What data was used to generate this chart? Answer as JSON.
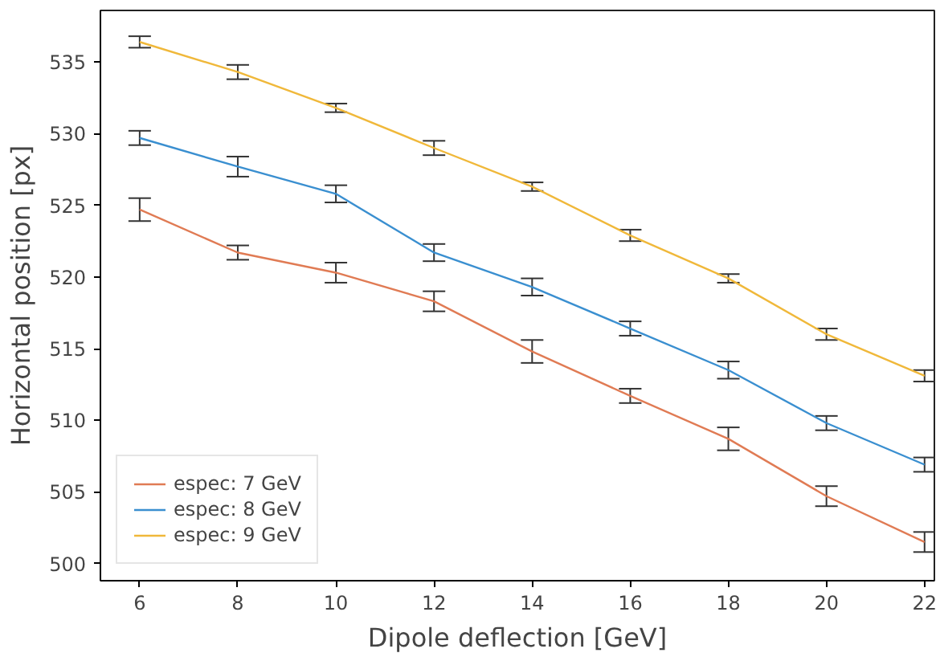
{
  "chart_data": {
    "type": "line",
    "xlabel": "Dipole deflection [GeV]",
    "ylabel": "Horizontal position [px]",
    "x": [
      6,
      8,
      10,
      12,
      14,
      16,
      18,
      20,
      22
    ],
    "series": [
      {
        "name": "espec: 7 GeV",
        "color": "#e07b54",
        "values": [
          524.7,
          521.7,
          520.3,
          518.3,
          514.8,
          511.7,
          508.7,
          504.7,
          501.5
        ],
        "errors": [
          0.8,
          0.5,
          0.7,
          0.7,
          0.8,
          0.5,
          0.8,
          0.7,
          0.7
        ]
      },
      {
        "name": "espec: 8 GeV",
        "color": "#3a8fd0",
        "values": [
          529.7,
          527.7,
          525.8,
          521.7,
          519.3,
          516.4,
          513.5,
          509.8,
          506.9
        ],
        "errors": [
          0.5,
          0.7,
          0.6,
          0.6,
          0.6,
          0.5,
          0.6,
          0.5,
          0.5
        ]
      },
      {
        "name": "espec: 9 GeV",
        "color": "#f0b83a",
        "values": [
          536.4,
          534.3,
          531.8,
          529.0,
          526.3,
          522.9,
          519.9,
          516.0,
          513.1
        ],
        "errors": [
          0.4,
          0.5,
          0.3,
          0.5,
          0.3,
          0.4,
          0.3,
          0.4,
          0.4
        ]
      }
    ],
    "xlim": [
      5.2,
      22.2
    ],
    "ylim": [
      498.8,
      538.6
    ],
    "xticks": [
      6,
      8,
      10,
      12,
      14,
      16,
      18,
      20,
      22
    ],
    "yticks": [
      500,
      505,
      510,
      515,
      520,
      525,
      530,
      535
    ],
    "grid": false,
    "legend": "bottom left",
    "marker": "none",
    "line_style": "solid"
  }
}
